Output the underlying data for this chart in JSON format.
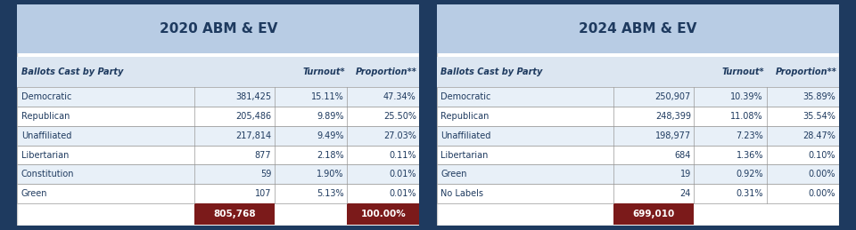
{
  "bg_color": "#1e3a5f",
  "panel_bg": "#ffffff",
  "header_bg": "#b8cce4",
  "table_header_bg": "#dce6f1",
  "row_bg_light": "#e8f0f8",
  "row_bg_white": "#ffffff",
  "total_bg": "#7b1a1a",
  "title_color": "#1e3a5f",
  "header_text_color": "#1e3a5f",
  "cell_text_color": "#1e3a5f",
  "total_text_color": "#ffffff",
  "border_color": "#999999",
  "table2020": {
    "title": "2020 ABM & EV",
    "col_header": [
      "Ballots Cast by Party",
      "Turnout*",
      "Proportion**"
    ],
    "rows": [
      [
        "Democratic",
        "381,425",
        "15.11%",
        "47.34%"
      ],
      [
        "Republican",
        "205,486",
        "9.89%",
        "25.50%"
      ],
      [
        "Unaffiliated",
        "217,814",
        "9.49%",
        "27.03%"
      ],
      [
        "Libertarian",
        "877",
        "2.18%",
        "0.11%"
      ],
      [
        "Constitution",
        "59",
        "1.90%",
        "0.01%"
      ],
      [
        "Green",
        "107",
        "5.13%",
        "0.01%"
      ]
    ],
    "total_votes": "805,768",
    "total_proportion": "100.00%"
  },
  "table2024": {
    "title": "2024 ABM & EV",
    "col_header": [
      "Ballots Cast by Party",
      "Turnout*",
      "Proportion**"
    ],
    "rows": [
      [
        "Democratic",
        "250,907",
        "10.39%",
        "35.89%"
      ],
      [
        "Republican",
        "248,399",
        "11.08%",
        "35.54%"
      ],
      [
        "Unaffiliated",
        "198,977",
        "7.23%",
        "28.47%"
      ],
      [
        "Libertarian",
        "684",
        "1.36%",
        "0.10%"
      ],
      [
        "Green",
        "19",
        "0.92%",
        "0.00%"
      ],
      [
        "No Labels",
        "24",
        "0.31%",
        "0.00%"
      ]
    ],
    "total_votes": "699,010",
    "total_proportion": null
  }
}
